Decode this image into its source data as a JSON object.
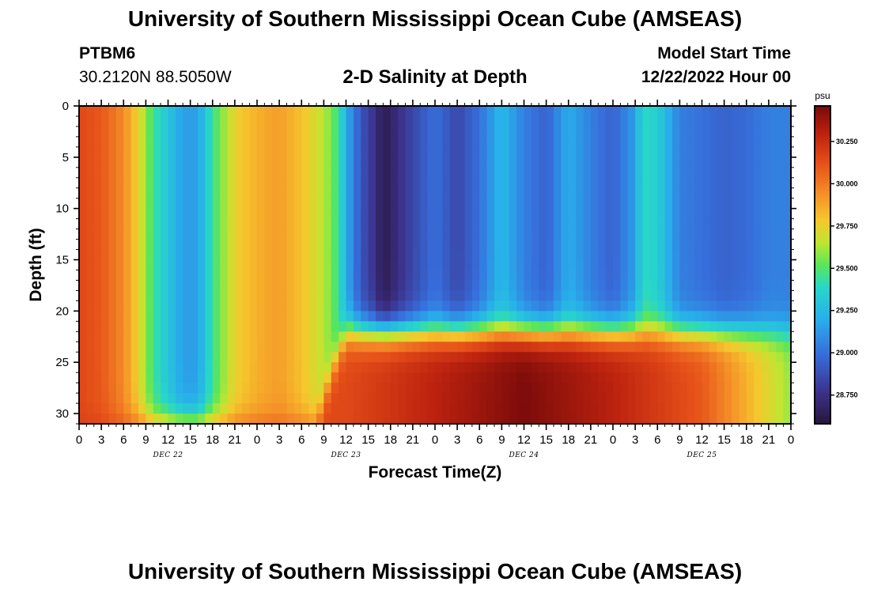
{
  "header": {
    "title": "University of Southern Mississippi Ocean Cube (AMSEAS)",
    "station_id": "PTBM6",
    "coords": "30.2120N  88.5050W",
    "plot_title": "2-D Salinity at Depth",
    "model_label": "Model Start Time",
    "model_date": "12/22/2022 Hour 00"
  },
  "footer": {
    "title": "University of Southern Mississippi Ocean Cube (AMSEAS)"
  },
  "chart_data": {
    "type": "heatmap",
    "title": "2-D Salinity at Depth",
    "xlabel": "Forecast Time(Z)",
    "ylabel": "Depth (ft)",
    "x_range_hours": [
      0,
      96
    ],
    "y_range_ft": [
      0,
      31
    ],
    "x_tick_labels": [
      "0",
      "3",
      "6",
      "9",
      "12",
      "15",
      "18",
      "21",
      "0",
      "3",
      "6",
      "9",
      "12",
      "15",
      "18",
      "21",
      "0",
      "3",
      "6",
      "9",
      "12",
      "15",
      "18",
      "21",
      "0",
      "3",
      "6",
      "9",
      "12",
      "15",
      "18",
      "21",
      "0"
    ],
    "date_labels": [
      {
        "label": "DEC 22",
        "hour": 12
      },
      {
        "label": "DEC 23",
        "hour": 36
      },
      {
        "label": "DEC 24",
        "hour": 60
      },
      {
        "label": "DEC 25",
        "hour": 84
      }
    ],
    "y_ticks": [
      0,
      5,
      10,
      15,
      20,
      25,
      30
    ],
    "colorbar": {
      "unit": "psu",
      "range": [
        28.58,
        30.46
      ],
      "ticks": [
        28.75,
        29.0,
        29.25,
        29.5,
        29.75,
        30.0,
        30.25
      ],
      "tick_labels": [
        "28.750",
        "29.000",
        "29.250",
        "29.500",
        "29.750",
        "30.000",
        "30.250"
      ]
    },
    "surface_salinity_profile": {
      "hours": [
        0,
        3,
        6,
        8,
        10,
        14,
        16,
        18,
        21,
        24,
        27,
        30,
        33,
        35,
        36,
        38,
        40,
        41,
        44,
        48,
        51,
        54,
        57,
        60,
        63,
        66,
        69,
        72,
        75,
        76,
        78,
        81,
        84,
        87,
        90,
        93,
        96
      ],
      "values_psu": [
        30.15,
        30.1,
        29.95,
        29.75,
        29.45,
        29.15,
        29.15,
        29.45,
        29.75,
        29.85,
        29.9,
        29.8,
        29.65,
        29.45,
        29.2,
        28.9,
        28.75,
        28.62,
        28.8,
        29.0,
        28.85,
        29.0,
        29.25,
        29.05,
        28.95,
        29.2,
        29.05,
        28.95,
        29.15,
        29.4,
        29.35,
        29.05,
        29.0,
        28.95,
        28.98,
        29.05,
        29.05
      ]
    },
    "bottom_layer_salinity_psu": {
      "hours": [
        0,
        36,
        48,
        60,
        72,
        84,
        96
      ],
      "values_psu": [
        30.2,
        30.15,
        30.3,
        30.45,
        30.3,
        30.1,
        29.6
      ]
    },
    "halocline_depth_ft": {
      "hours": [
        0,
        32,
        34,
        36,
        96
      ],
      "values_ft": [
        31,
        31,
        26,
        22,
        22
      ]
    }
  }
}
